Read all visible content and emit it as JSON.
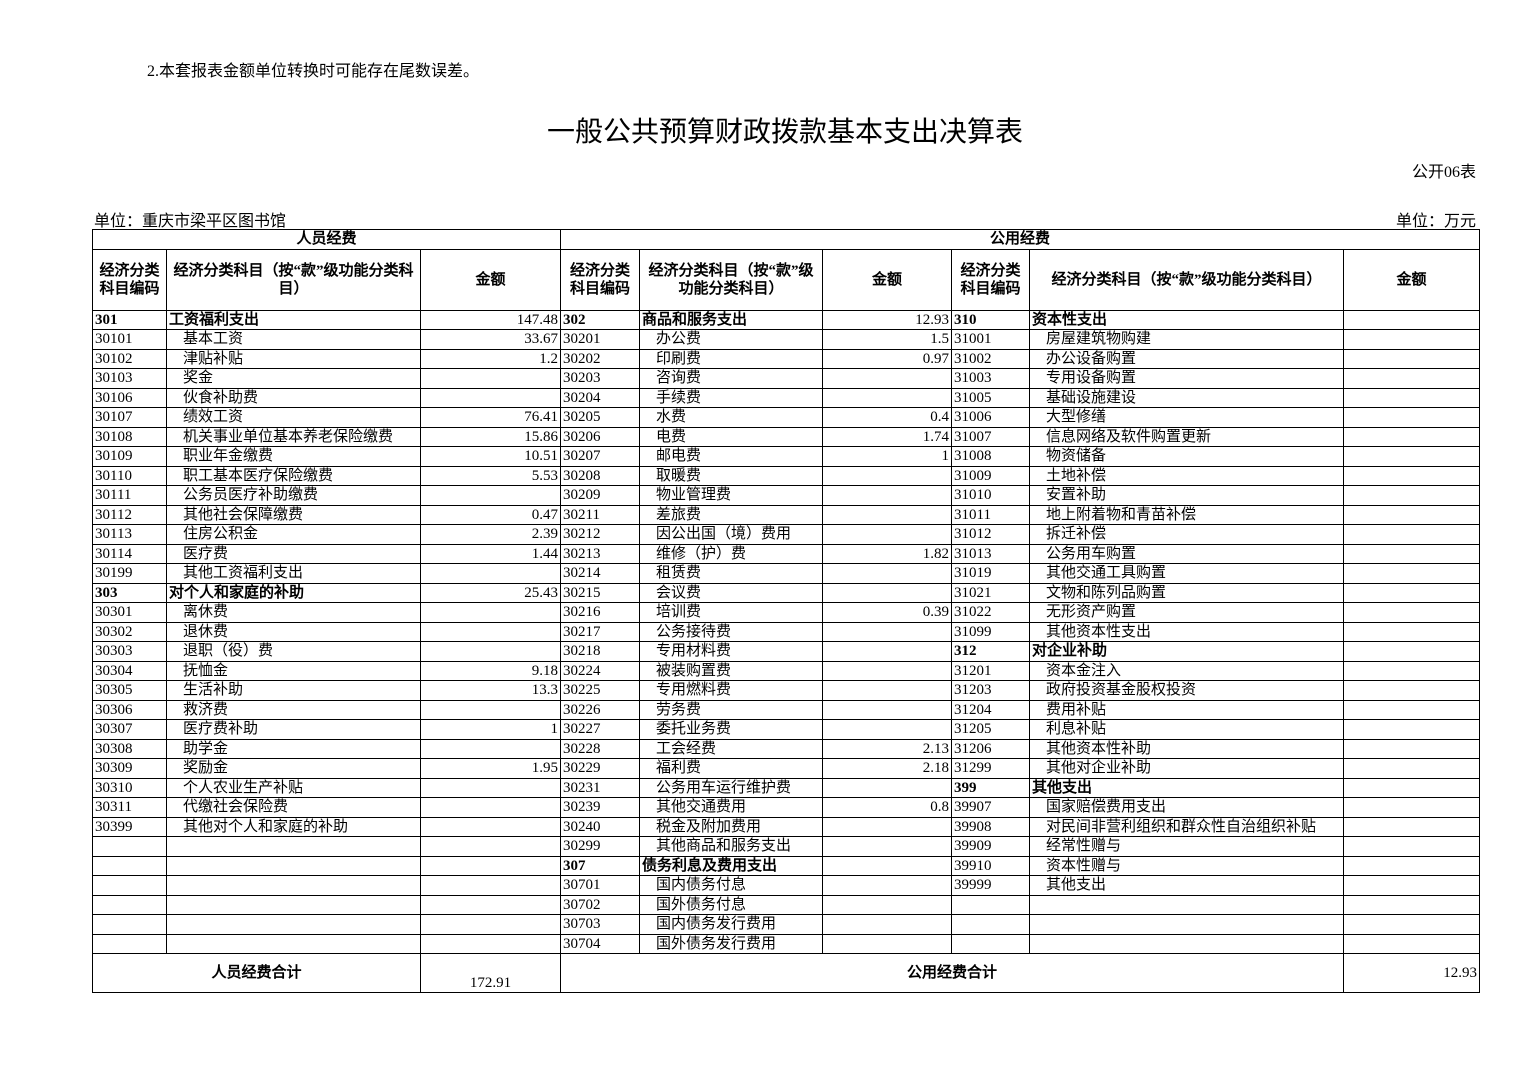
{
  "note": "2.本套报表金额单位转换时可能存在尾数误差。",
  "title": "一般公共预算财政拨款基本支出决算表",
  "table_no": "公开06表",
  "unit_left": "单位：重庆市梁平区图书馆",
  "unit_right": "单位：万元",
  "groups": {
    "personnel": "人员经费",
    "public": "公用经费"
  },
  "headers": {
    "code": "经济分类科目编码",
    "name": "经济分类科目（按“款”级功能分类科目）",
    "amount": "金额"
  },
  "rows": [
    [
      "301",
      "工资福利支出",
      "147.48",
      "302",
      "商品和服务支出",
      "12.93",
      "310",
      "资本性支出",
      ""
    ],
    [
      "30101",
      "基本工资",
      "33.67",
      "30201",
      "办公费",
      "1.5",
      "31001",
      "房屋建筑物购建",
      ""
    ],
    [
      "30102",
      "津贴补贴",
      "1.2",
      "30202",
      "印刷费",
      "0.97",
      "31002",
      "办公设备购置",
      ""
    ],
    [
      "30103",
      "奖金",
      "",
      "30203",
      "咨询费",
      "",
      "31003",
      "专用设备购置",
      ""
    ],
    [
      "30106",
      "伙食补助费",
      "",
      "30204",
      "手续费",
      "",
      "31005",
      "基础设施建设",
      ""
    ],
    [
      "30107",
      "绩效工资",
      "76.41",
      "30205",
      "水费",
      "0.4",
      "31006",
      "大型修缮",
      ""
    ],
    [
      "30108",
      "机关事业单位基本养老保险缴费",
      "15.86",
      "30206",
      "电费",
      "1.74",
      "31007",
      "信息网络及软件购置更新",
      ""
    ],
    [
      "30109",
      "职业年金缴费",
      "10.51",
      "30207",
      "邮电费",
      "1",
      "31008",
      "物资储备",
      ""
    ],
    [
      "30110",
      "职工基本医疗保险缴费",
      "5.53",
      "30208",
      "取暖费",
      "",
      "31009",
      "土地补偿",
      ""
    ],
    [
      "30111",
      "公务员医疗补助缴费",
      "",
      "30209",
      "物业管理费",
      "",
      "31010",
      "安置补助",
      ""
    ],
    [
      "30112",
      "其他社会保障缴费",
      "0.47",
      "30211",
      "差旅费",
      "",
      "31011",
      "地上附着物和青苗补偿",
      ""
    ],
    [
      "30113",
      "住房公积金",
      "2.39",
      "30212",
      "因公出国（境）费用",
      "",
      "31012",
      "拆迁补偿",
      ""
    ],
    [
      "30114",
      "医疗费",
      "1.44",
      "30213",
      "维修（护）费",
      "1.82",
      "31013",
      "公务用车购置",
      ""
    ],
    [
      "30199",
      "其他工资福利支出",
      "",
      "30214",
      "租赁费",
      "",
      "31019",
      "其他交通工具购置",
      ""
    ],
    [
      "303",
      "对个人和家庭的补助",
      "25.43",
      "30215",
      "会议费",
      "",
      "31021",
      "文物和陈列品购置",
      ""
    ],
    [
      "30301",
      "离休费",
      "",
      "30216",
      "培训费",
      "0.39",
      "31022",
      "无形资产购置",
      ""
    ],
    [
      "30302",
      "退休费",
      "",
      "30217",
      "公务接待费",
      "",
      "31099",
      "其他资本性支出",
      ""
    ],
    [
      "30303",
      "退职（役）费",
      "",
      "30218",
      "专用材料费",
      "",
      "312",
      "对企业补助",
      ""
    ],
    [
      "30304",
      "抚恤金",
      "9.18",
      "30224",
      "被装购置费",
      "",
      "31201",
      "资本金注入",
      ""
    ],
    [
      "30305",
      "生活补助",
      "13.3",
      "30225",
      "专用燃料费",
      "",
      "31203",
      "政府投资基金股权投资",
      ""
    ],
    [
      "30306",
      "救济费",
      "",
      "30226",
      "劳务费",
      "",
      "31204",
      "费用补贴",
      ""
    ],
    [
      "30307",
      "医疗费补助",
      "1",
      "30227",
      "委托业务费",
      "",
      "31205",
      "利息补贴",
      ""
    ],
    [
      "30308",
      "助学金",
      "",
      "30228",
      "工会经费",
      "2.13",
      "31206",
      "其他资本性补助",
      ""
    ],
    [
      "30309",
      "奖励金",
      "1.95",
      "30229",
      "福利费",
      "2.18",
      "31299",
      "其他对企业补助",
      ""
    ],
    [
      "30310",
      "个人农业生产补贴",
      "",
      "30231",
      "公务用车运行维护费",
      "",
      "399",
      "其他支出",
      ""
    ],
    [
      "30311",
      "代缴社会保险费",
      "",
      "30239",
      "其他交通费用",
      "0.8",
      "39907",
      "国家赔偿费用支出",
      ""
    ],
    [
      "30399",
      "其他对个人和家庭的补助",
      "",
      "30240",
      "税金及附加费用",
      "",
      "39908",
      "对民间非营利组织和群众性自治组织补贴",
      ""
    ],
    [
      "",
      "",
      "",
      "30299",
      "其他商品和服务支出",
      "",
      "39909",
      "经常性赠与",
      ""
    ],
    [
      "",
      "",
      "",
      "307",
      "债务利息及费用支出",
      "",
      "39910",
      "资本性赠与",
      ""
    ],
    [
      "",
      "",
      "",
      "30701",
      "国内债务付息",
      "",
      "39999",
      "其他支出",
      ""
    ],
    [
      "",
      "",
      "",
      "30702",
      "国外债务付息",
      "",
      "",
      "",
      ""
    ],
    [
      "",
      "",
      "",
      "30703",
      "国内债务发行费用",
      "",
      "",
      "",
      ""
    ],
    [
      "",
      "",
      "",
      "30704",
      "国外债务发行费用",
      "",
      "",
      "",
      ""
    ]
  ],
  "footer": {
    "personnel_label": "人员经费合计",
    "personnel_total": "172.91",
    "public_label": "公用经费合计",
    "public_total": "12.93"
  }
}
